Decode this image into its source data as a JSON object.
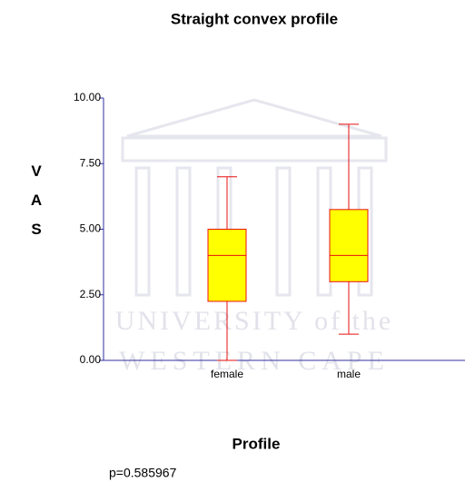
{
  "chart_data": {
    "type": "box",
    "title": "Straight convex profile",
    "y_label": "VAS",
    "x_label": "Profile",
    "annotation": "p=0.585967",
    "watermark": [
      "UNIVERSITY of the",
      "WESTERN CAPE"
    ],
    "categories": [
      "female",
      "male"
    ],
    "boxes": [
      {
        "min": 0,
        "q1": 2.25,
        "median": 4,
        "q3": 5,
        "max": 7
      },
      {
        "min": 1,
        "q1": 3,
        "median": 4,
        "q3": 5.75,
        "max": 9
      }
    ],
    "fill": "#ffff00",
    "stroke": "#e81010",
    "axis_color": "#3030a0",
    "ylim": [
      0,
      10
    ],
    "yticks": [
      {
        "value": 0,
        "label": "0.00"
      },
      {
        "value": 2.5,
        "label": "2.50"
      },
      {
        "value": 5,
        "label": "5.00"
      },
      {
        "value": 7.5,
        "label": "7.50"
      },
      {
        "value": 10,
        "label": "10.00"
      }
    ]
  }
}
